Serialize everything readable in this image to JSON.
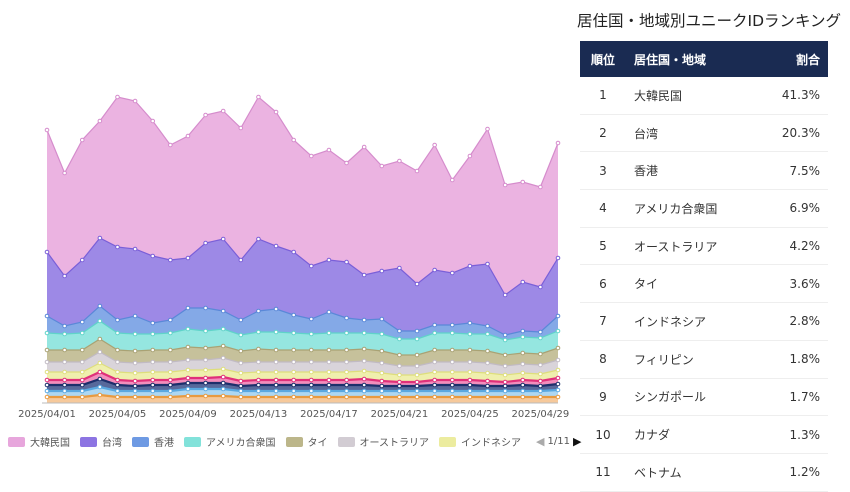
{
  "chart_data": {
    "type": "area",
    "stacked": true,
    "title": "",
    "xlabel": "",
    "ylabel": "",
    "x": [
      "2025/04/01",
      "2025/04/02",
      "2025/04/03",
      "2025/04/04",
      "2025/04/05",
      "2025/04/06",
      "2025/04/07",
      "2025/04/08",
      "2025/04/09",
      "2025/04/10",
      "2025/04/11",
      "2025/04/12",
      "2025/04/13",
      "2025/04/14",
      "2025/04/15",
      "2025/04/16",
      "2025/04/17",
      "2025/04/18",
      "2025/04/19",
      "2025/04/20",
      "2025/04/21",
      "2025/04/22",
      "2025/04/23",
      "2025/04/24",
      "2025/04/25",
      "2025/04/26",
      "2025/04/27",
      "2025/04/28",
      "2025/04/29",
      "2025/04/30"
    ],
    "x_tick_labels": [
      "2025/04/01",
      "2025/04/05",
      "2025/04/09",
      "2025/04/13",
      "2025/04/17",
      "2025/04/21",
      "2025/04/25",
      "2025/04/29"
    ],
    "grid": false,
    "legend_position": "bottom",
    "legend_page": "1/11",
    "series": [
      {
        "name": "大韓民国",
        "color": "#e7a6dc",
        "line": "#d58ccc",
        "values": [
          122,
          103,
          120,
          117,
          150,
          148,
          135,
          115,
          122,
          128,
          128,
          132,
          142,
          134,
          112,
          110,
          110,
          99,
          128,
          105,
          107,
          113,
          125,
          93,
          110,
          135,
          110,
          100,
          100,
          115
        ]
      },
      {
        "name": "台湾",
        "color": "#8c74e2",
        "line": "#7a5fd8",
        "values": [
          64,
          50,
          62,
          68,
          73,
          67,
          67,
          60,
          50,
          65,
          72,
          60,
          72,
          63,
          63,
          53,
          52,
          56,
          45,
          48,
          63,
          47,
          55,
          52,
          57,
          62,
          40,
          49,
          45,
          58
        ]
      },
      {
        "name": "香港",
        "color": "#6e9ae3",
        "line": "#5a88d8",
        "values": [
          17,
          8,
          11,
          15,
          13,
          18,
          11,
          13,
          21,
          23,
          18,
          15,
          21,
          23,
          18,
          15,
          21,
          15,
          13,
          15,
          8,
          8,
          8,
          8,
          11,
          8,
          5,
          6,
          6,
          15
        ]
      },
      {
        "name": "アメリカ合衆国",
        "color": "#82e2da",
        "line": "#5fd3c9",
        "values": [
          17,
          16,
          17,
          18,
          17,
          17,
          16,
          17,
          18,
          17,
          17,
          16,
          17,
          18,
          17,
          16,
          17,
          17,
          16,
          17,
          16,
          16,
          17,
          17,
          16,
          17,
          15,
          16,
          16,
          17
        ]
      },
      {
        "name": "タイ",
        "color": "#bcb68a",
        "line": "#a9a274",
        "values": [
          12,
          12,
          12,
          13,
          12,
          12,
          12,
          12,
          13,
          12,
          12,
          12,
          13,
          12,
          12,
          12,
          12,
          12,
          12,
          12,
          11,
          11,
          12,
          12,
          12,
          12,
          11,
          11,
          11,
          12
        ]
      },
      {
        "name": "オーストラリア",
        "color": "#d2ccd3",
        "line": "#c1bac3",
        "values": [
          10,
          10,
          10,
          11,
          10,
          10,
          10,
          10,
          10,
          10,
          11,
          10,
          10,
          10,
          10,
          10,
          10,
          10,
          10,
          10,
          9,
          9,
          10,
          10,
          10,
          10,
          9,
          9,
          9,
          10
        ]
      },
      {
        "name": "インドネシア",
        "color": "#ecec9f",
        "line": "#dede7c",
        "values": [
          8,
          8,
          8,
          9,
          8,
          8,
          8,
          8,
          8,
          8,
          8,
          8,
          8,
          8,
          8,
          8,
          8,
          8,
          8,
          8,
          7,
          7,
          8,
          8,
          8,
          8,
          7,
          7,
          7,
          8
        ]
      },
      {
        "name": "フィリピン",
        "color": "#f07ab0",
        "line": "#e0307a",
        "values": [
          5,
          5,
          5,
          7,
          5,
          5,
          5,
          5,
          5,
          5,
          6,
          5,
          5,
          5,
          5,
          5,
          5,
          5,
          6,
          5,
          4,
          4,
          5,
          5,
          5,
          5,
          4,
          5,
          5,
          6
        ]
      },
      {
        "name": "シンガポール",
        "color": "#3a4f8a",
        "line": "#1d2f6b",
        "values": [
          6,
          6,
          6,
          8,
          6,
          5,
          6,
          6,
          6,
          6,
          6,
          5,
          6,
          6,
          6,
          6,
          6,
          6,
          6,
          5,
          5,
          5,
          6,
          6,
          6,
          5,
          5,
          6,
          5,
          6
        ]
      },
      {
        "name": "カナダ",
        "color": "#9fd0f0",
        "line": "#5aa8e0",
        "values": [
          6,
          6,
          6,
          8,
          6,
          6,
          6,
          6,
          7,
          7,
          7,
          6,
          6,
          6,
          6,
          6,
          6,
          6,
          6,
          6,
          6,
          6,
          6,
          6,
          6,
          6,
          6,
          6,
          6,
          7
        ]
      },
      {
        "name": "ベトナム",
        "color": "#f5c08a",
        "line": "#e89a40",
        "values": [
          6,
          6,
          6,
          8,
          6,
          6,
          6,
          6,
          7,
          7,
          7,
          6,
          6,
          6,
          6,
          6,
          6,
          6,
          6,
          6,
          6,
          6,
          6,
          6,
          6,
          6,
          6,
          6,
          6,
          6
        ]
      }
    ]
  },
  "ranking": {
    "title": "居住国・地域別ユニークIDランキング",
    "headers": {
      "rank": "順位",
      "region": "居住国・地域",
      "share": "割合"
    },
    "rows": [
      {
        "rank": "1",
        "region": "大韓民国",
        "share": "41.3%"
      },
      {
        "rank": "2",
        "region": "台湾",
        "share": "20.3%"
      },
      {
        "rank": "3",
        "region": "香港",
        "share": "7.5%"
      },
      {
        "rank": "4",
        "region": "アメリカ合衆国",
        "share": "6.9%"
      },
      {
        "rank": "5",
        "region": "オーストラリア",
        "share": "4.2%"
      },
      {
        "rank": "6",
        "region": "タイ",
        "share": "3.6%"
      },
      {
        "rank": "7",
        "region": "インドネシア",
        "share": "2.8%"
      },
      {
        "rank": "8",
        "region": "フィリピン",
        "share": "1.8%"
      },
      {
        "rank": "9",
        "region": "シンガポール",
        "share": "1.7%"
      },
      {
        "rank": "10",
        "region": "カナダ",
        "share": "1.3%"
      },
      {
        "rank": "11",
        "region": "ベトナム",
        "share": "1.2%"
      }
    ]
  }
}
